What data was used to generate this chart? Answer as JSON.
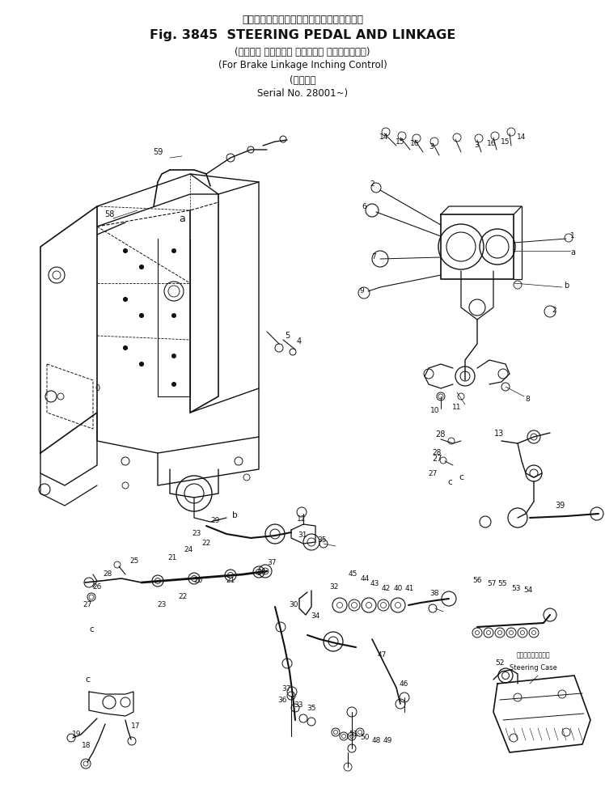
{
  "title_jp": "ステアリング　ペダル　および　リンケージ",
  "title_fig": "Fig. 3845  STEERING PEDAL AND LINKAGE",
  "subtitle_jp": "(ブレーキ リンケージ インチング コントロール用)",
  "subtitle_en": "(For Brake Linkage Inching Control)",
  "serial_jp": "(適用号機",
  "serial_en": "Serial No. 28001~)",
  "bg_color": "#ffffff",
  "ink": "#111111",
  "fig_fontsize": 10,
  "title_fontsize": 12
}
